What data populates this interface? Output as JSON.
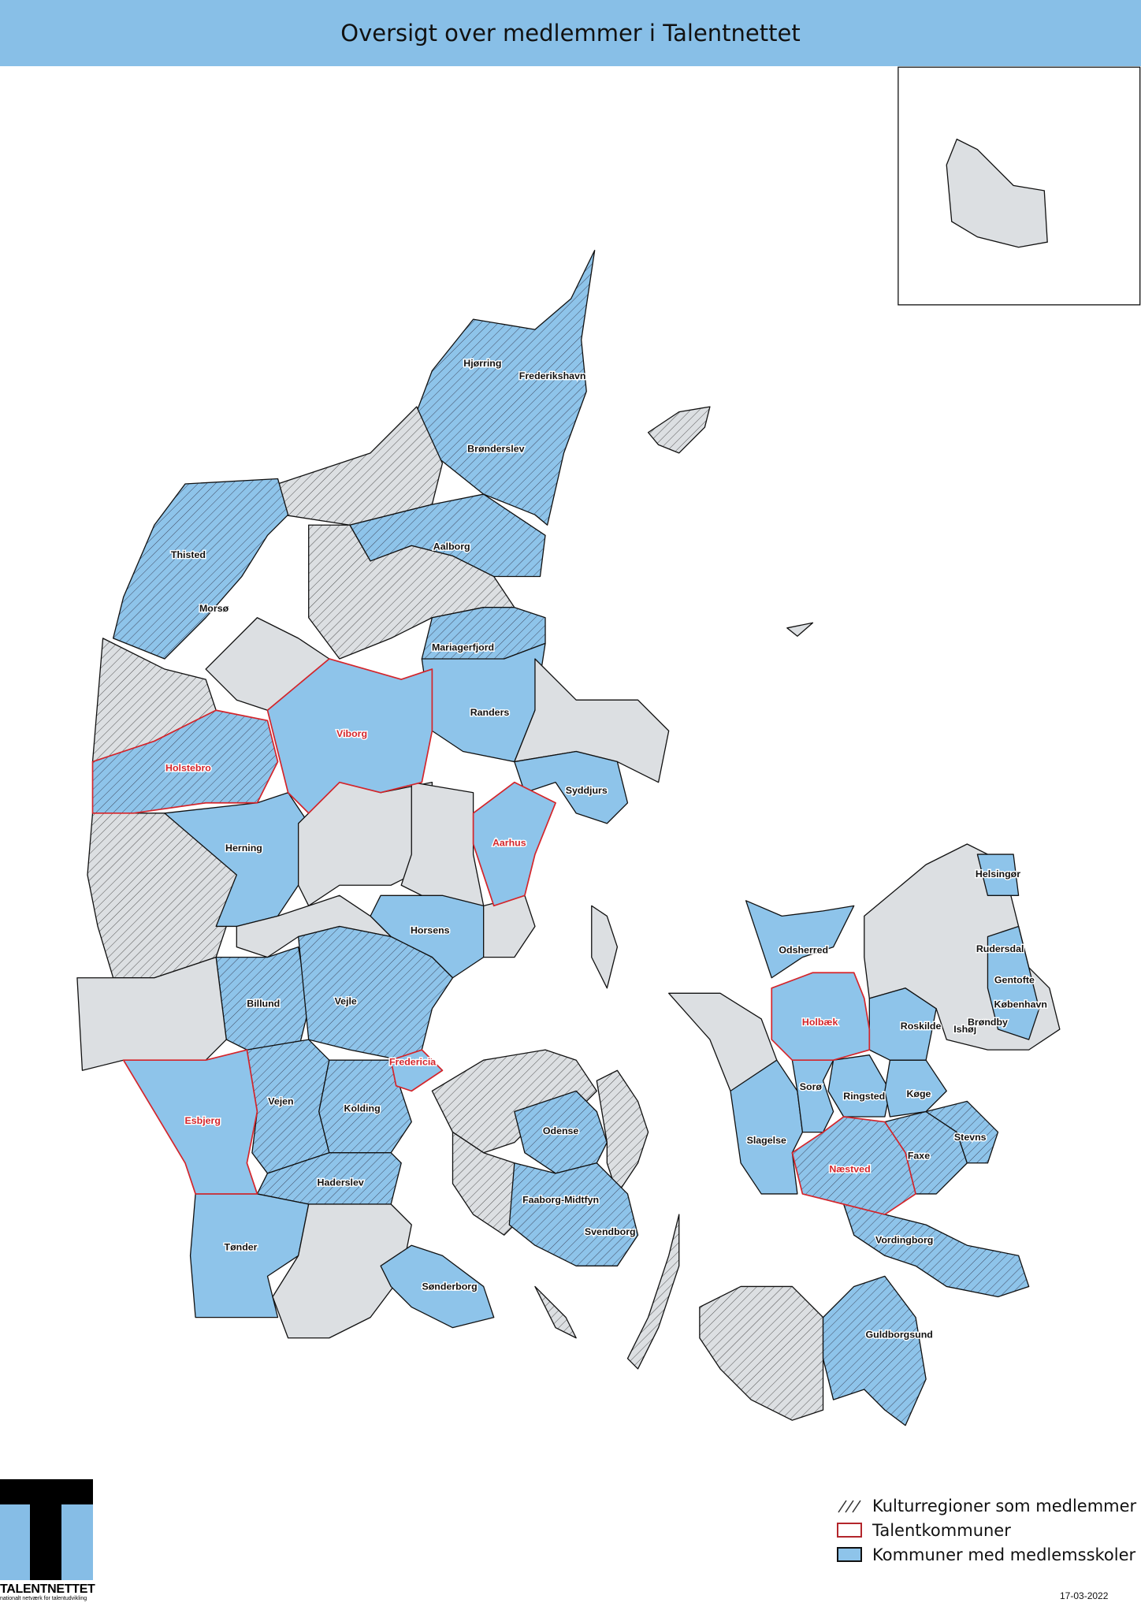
{
  "header": {
    "title": "Oversigt over medlemmer i Talentnettet"
  },
  "colors": {
    "header": "#88bfe7",
    "member_schools": "#8ec4ea",
    "other_municipality": "#dcdfe2",
    "talent_border": "#d4252b",
    "hatch": "#333333"
  },
  "legend": {
    "items": [
      {
        "label": "Kulturregioner som medlemmer",
        "symbol": "hatch"
      },
      {
        "label": "Talentkommuner",
        "symbol": "red-outline"
      },
      {
        "label": "Kommuner med medlemsskoler",
        "symbol": "blue-fill"
      }
    ]
  },
  "date": "17-03-2022",
  "logo": {
    "name": "TALENTNETTET",
    "tagline": "nationalt netværk for talentudvikling"
  },
  "map": {
    "labels": [
      {
        "name": "Hjørring",
        "talent": false
      },
      {
        "name": "Frederikshavn",
        "talent": false
      },
      {
        "name": "Brønderslev",
        "talent": false
      },
      {
        "name": "Thisted",
        "talent": false
      },
      {
        "name": "Aalborg",
        "talent": false
      },
      {
        "name": "Morsø",
        "talent": false
      },
      {
        "name": "Mariagerfjord",
        "talent": false
      },
      {
        "name": "Randers",
        "talent": false
      },
      {
        "name": "Viborg",
        "talent": true
      },
      {
        "name": "Holstebro",
        "talent": true
      },
      {
        "name": "Syddjurs",
        "talent": false
      },
      {
        "name": "Aarhus",
        "talent": true
      },
      {
        "name": "Herning",
        "talent": false
      },
      {
        "name": "Horsens",
        "talent": false
      },
      {
        "name": "Billund",
        "talent": false
      },
      {
        "name": "Vejle",
        "talent": false
      },
      {
        "name": "Fredericia",
        "talent": true
      },
      {
        "name": "Esbjerg",
        "talent": true
      },
      {
        "name": "Vejen",
        "talent": false
      },
      {
        "name": "Kolding",
        "talent": false
      },
      {
        "name": "Haderslev",
        "talent": false
      },
      {
        "name": "Tønder",
        "talent": false
      },
      {
        "name": "Sønderborg",
        "talent": false
      },
      {
        "name": "Odense",
        "talent": false
      },
      {
        "name": "Faaborg-Midtfyn",
        "talent": false
      },
      {
        "name": "Svendborg",
        "talent": false
      },
      {
        "name": "Helsingør",
        "talent": false
      },
      {
        "name": "Odsherred",
        "talent": false
      },
      {
        "name": "Rudersdal",
        "talent": false
      },
      {
        "name": "Gentofte",
        "talent": false
      },
      {
        "name": "Holbæk",
        "talent": true
      },
      {
        "name": "København",
        "talent": false
      },
      {
        "name": "Roskilde",
        "talent": false
      },
      {
        "name": "Ishøj",
        "talent": false
      },
      {
        "name": "Brøndby",
        "talent": false
      },
      {
        "name": "Sorø",
        "talent": false
      },
      {
        "name": "Ringsted",
        "talent": false
      },
      {
        "name": "Køge",
        "talent": false
      },
      {
        "name": "Slagelse",
        "talent": false
      },
      {
        "name": "Stevns",
        "talent": false
      },
      {
        "name": "Næstved",
        "talent": true
      },
      {
        "name": "Faxe",
        "talent": false
      },
      {
        "name": "Vordingborg",
        "talent": false
      },
      {
        "name": "Guldborgsund",
        "talent": false
      }
    ]
  }
}
